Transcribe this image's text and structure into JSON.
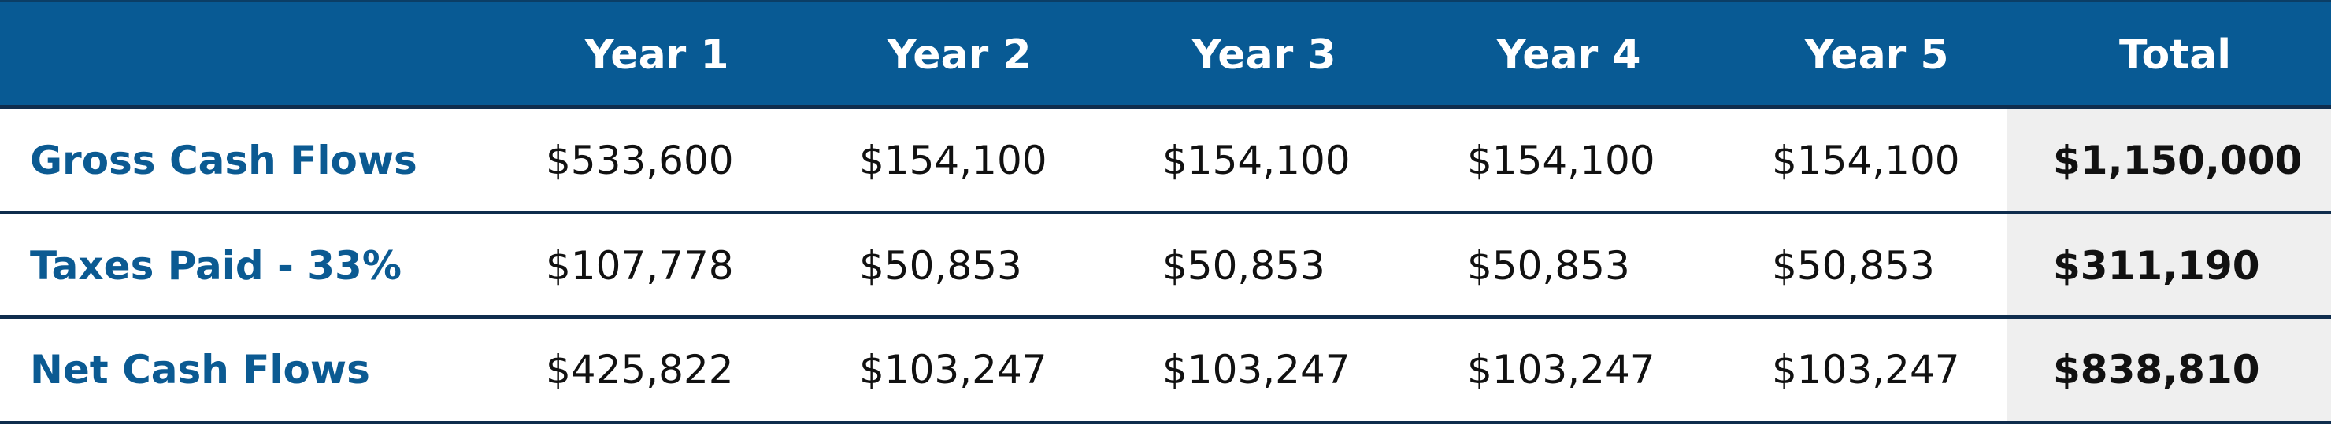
{
  "table": {
    "columns": [
      "Year 1",
      "Year 2",
      "Year 3",
      "Year 4",
      "Year 5",
      "Total"
    ],
    "rows": [
      {
        "label": "Gross Cash Flows",
        "values": [
          "$533,600",
          "$154,100",
          "$154,100",
          "$154,100",
          "$154,100",
          "$1,150,000"
        ]
      },
      {
        "label": "Taxes Paid - 33%",
        "values": [
          "$107,778",
          "$50,853",
          "$50,853",
          "$50,853",
          "$50,853",
          "$311,190"
        ]
      },
      {
        "label": "Net Cash Flows",
        "values": [
          "$425,822",
          "$103,247",
          "$103,247",
          "$103,247",
          "$103,247",
          "$838,810"
        ]
      }
    ]
  }
}
